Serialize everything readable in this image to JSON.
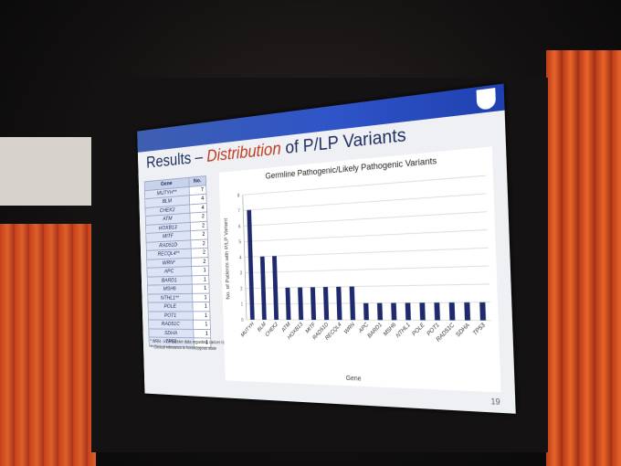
{
  "slide": {
    "title_start": "Results – ",
    "title_accent": "Distribution",
    "title_end": " of P/LP Variants",
    "page_number": "19"
  },
  "table": {
    "header": [
      "Gene",
      "No."
    ],
    "rows": [
      [
        "MUTYH**",
        7
      ],
      [
        "BLM",
        4
      ],
      [
        "CHEK2",
        4
      ],
      [
        "ATM",
        2
      ],
      [
        "HOXB13",
        2
      ],
      [
        "MITF",
        2
      ],
      [
        "RAD51D",
        2
      ],
      [
        "RECQL4**",
        2
      ],
      [
        "WRN*",
        2
      ],
      [
        "APC",
        1
      ],
      [
        "BARD1",
        1
      ],
      [
        "MSH6",
        1
      ],
      [
        "NTHL1**",
        1
      ],
      [
        "POLE",
        1
      ],
      [
        "POT1",
        1
      ],
      [
        "RAD51C",
        1
      ],
      [
        "SDHA",
        1
      ],
      [
        "TP53",
        1
      ]
    ]
  },
  "footnotes": [
    "* WRN - inconclusive data regarding cancer risk.",
    "** Clinical relevance in homozygous state"
  ],
  "chart_data": {
    "type": "bar",
    "title": "Germline Pathogenic/Likely Pathogenic Variants",
    "x_label": "Gene",
    "y_label": "No. of Patients with P/LP Variant",
    "categories": [
      "MUTYH",
      "BLM",
      "CHEK2",
      "ATM",
      "HOXB13",
      "MITF",
      "RAD51D",
      "RECQL4",
      "WRN",
      "APC",
      "BARD1",
      "MSH6",
      "NTHL1",
      "POLE",
      "POT1",
      "RAD51C",
      "SDHA",
      "TP53"
    ],
    "values": [
      7,
      4,
      4,
      2,
      2,
      2,
      2,
      2,
      2,
      1,
      1,
      1,
      1,
      1,
      1,
      1,
      1,
      1
    ],
    "color": "#1f2a6e",
    "ylim": [
      0,
      8
    ],
    "yticks": [
      0,
      1,
      2,
      3,
      4,
      5,
      6,
      7,
      8
    ],
    "grid": true
  }
}
